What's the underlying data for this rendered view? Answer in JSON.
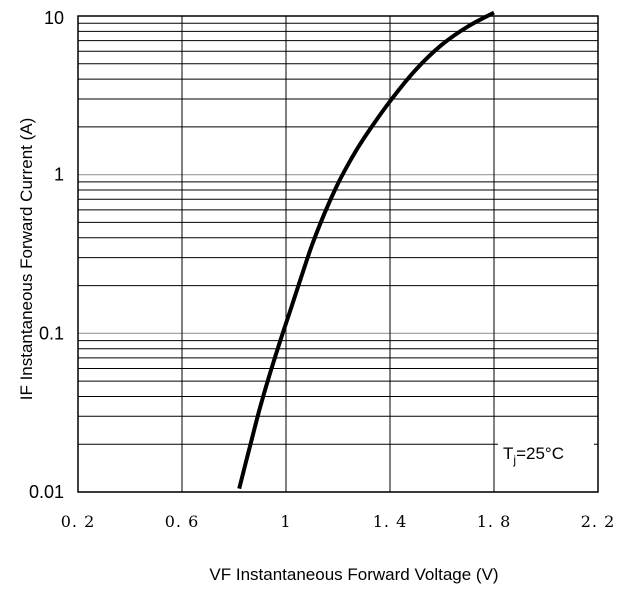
{
  "chart_data": {
    "type": "line",
    "title": "",
    "xlabel": "VF  Instantaneous Forward Voltage (V)",
    "ylabel": "IF Instantaneous Forward Current (A)",
    "xscale": "linear",
    "yscale": "log",
    "xlim": [
      0.2,
      2.2
    ],
    "ylim": [
      0.01,
      10
    ],
    "xticks": [
      0.2,
      0.6,
      1.0,
      1.4,
      1.8,
      2.2
    ],
    "xtick_labels": [
      "0. 2",
      "0. 6",
      "1",
      "1. 4",
      "1. 8",
      "2. 2"
    ],
    "yticks": [
      0.01,
      0.1,
      1,
      10
    ],
    "ytick_labels": [
      "0.01",
      "0.1",
      "1",
      "10"
    ],
    "grid": true,
    "annotation": {
      "base": "T",
      "sub": "j",
      "rest": "=25°C"
    },
    "series": [
      {
        "x": [
          0.82,
          0.86,
          0.9,
          0.94,
          0.98,
          1.02,
          1.06,
          1.1,
          1.15,
          1.2,
          1.25,
          1.3,
          1.4,
          1.5,
          1.6,
          1.7,
          1.8
        ],
        "y": [
          0.0105,
          0.019,
          0.034,
          0.057,
          0.092,
          0.145,
          0.23,
          0.36,
          0.58,
          0.88,
          1.25,
          1.7,
          2.9,
          4.6,
          6.6,
          8.6,
          10.5
        ],
        "color": "#000000"
      }
    ]
  }
}
